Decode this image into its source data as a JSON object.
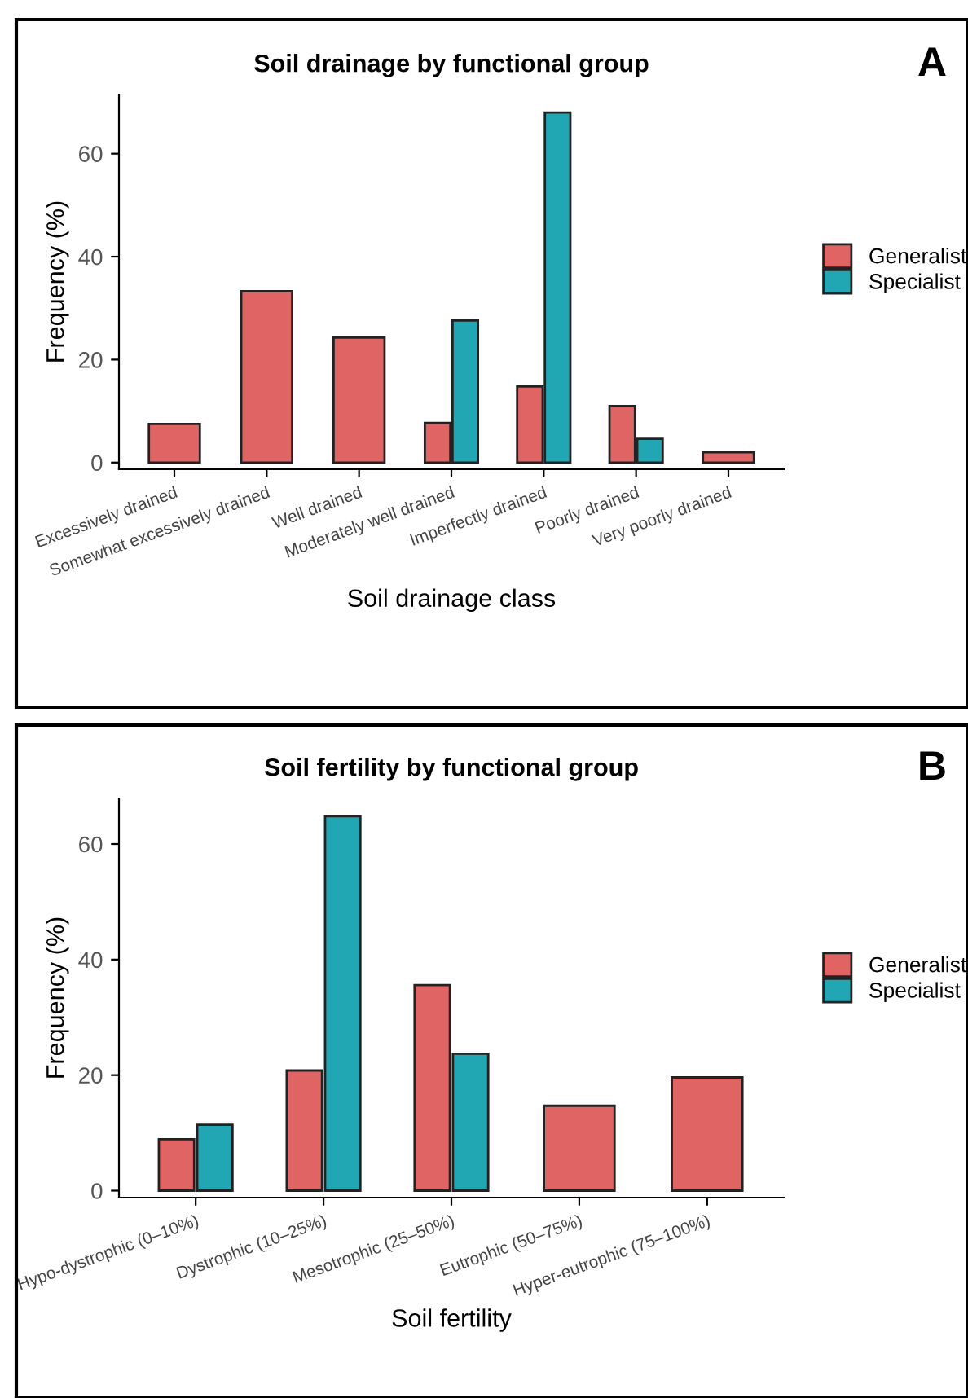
{
  "chart_data": [
    {
      "type": "bar",
      "title": "Soil drainage by functional group",
      "xlabel": "Soil drainage class",
      "ylabel": "Frequency (%)",
      "categories": [
        "Excessively drained",
        "Somewhat excessively drained",
        "Well drained",
        "Moderately well drained",
        "Imperfectly drained",
        "Poorly drained",
        "Very poorly drained"
      ],
      "series": [
        {
          "name": "Generalist",
          "color": "#e06464",
          "values": [
            7.5,
            33.3,
            24.3,
            7.7,
            14.8,
            11.0,
            2.0
          ]
        },
        {
          "name": "Specialist",
          "color": "#21a6b3",
          "values": [
            null,
            null,
            null,
            27.6,
            68.0,
            4.6,
            null
          ]
        }
      ],
      "ylim": [
        -1.3,
        71.5
      ],
      "yticks": [
        0,
        20,
        40,
        60
      ],
      "grid": false,
      "legend": "right",
      "annotations": [
        "A"
      ]
    },
    {
      "type": "bar",
      "title": "Soil fertility by functional group",
      "xlabel": "Soil fertility",
      "ylabel": "Frequency (%)",
      "categories": [
        "Hypo-dystrophic (0–10%)",
        "Dystrophic (10–25%)",
        "Mesotrophic (25–50%)",
        "Eutrophic (50–75%)",
        "Hyper-eutrophic (75–100%)"
      ],
      "series": [
        {
          "name": "Generalist",
          "color": "#e06464",
          "values": [
            8.9,
            20.8,
            35.6,
            14.7,
            19.6
          ]
        },
        {
          "name": "Specialist",
          "color": "#21a6b3",
          "values": [
            11.4,
            64.8,
            23.7,
            null,
            null
          ]
        }
      ],
      "ylim": [
        -1.2,
        67.9
      ],
      "yticks": [
        0,
        20,
        40,
        60
      ],
      "grid": false,
      "legend": "right",
      "annotations": [
        "B"
      ]
    }
  ]
}
